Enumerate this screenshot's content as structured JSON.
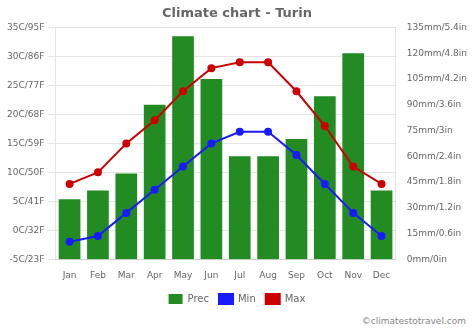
{
  "chart_data": {
    "type": "bar",
    "title": "Climate chart - Turin",
    "categories": [
      "Jan",
      "Feb",
      "Mar",
      "Apr",
      "May",
      "Jun",
      "Jul",
      "Aug",
      "Sep",
      "Oct",
      "Nov",
      "Dec"
    ],
    "series": [
      {
        "name": "Prec",
        "type": "bar",
        "axis": "y2",
        "color": "#228B22",
        "values": [
          35,
          40,
          50,
          90,
          130,
          105,
          60,
          60,
          70,
          95,
          120,
          40
        ]
      },
      {
        "name": "Min",
        "type": "line",
        "marker": "circle",
        "color": "#1a1aff",
        "values": [
          -2,
          -1,
          3,
          7,
          11,
          15,
          17,
          17,
          13,
          8,
          3,
          -1
        ]
      },
      {
        "name": "Max",
        "type": "line",
        "marker": "circle",
        "color": "#cc0000",
        "values": [
          8,
          10,
          15,
          19,
          24,
          28,
          29,
          29,
          24,
          18,
          11,
          8
        ]
      }
    ],
    "ylim": [
      -5,
      35
    ],
    "yticks": [
      {
        "value": -5,
        "label": "-5C/23F"
      },
      {
        "value": 0,
        "label": "0C/32F"
      },
      {
        "value": 5,
        "label": "5C/41F"
      },
      {
        "value": 10,
        "label": "10C/50F"
      },
      {
        "value": 15,
        "label": "15C/59F"
      },
      {
        "value": 20,
        "label": "20C/68F"
      },
      {
        "value": 25,
        "label": "25C/77F"
      },
      {
        "value": 30,
        "label": "30C/86F"
      },
      {
        "value": 35,
        "label": "35C/95F"
      }
    ],
    "y2lim": [
      0,
      135
    ],
    "y2ticks": [
      {
        "value": 0,
        "label": "0mm/0in"
      },
      {
        "value": 15,
        "label": "15mm/0.6in"
      },
      {
        "value": 30,
        "label": "30mm/1.2in"
      },
      {
        "value": 45,
        "label": "45mm/1.8in"
      },
      {
        "value": 60,
        "label": "60mm/2.4in"
      },
      {
        "value": 75,
        "label": "75mm/3in"
      },
      {
        "value": 90,
        "label": "90mm/3.6in"
      },
      {
        "value": 105,
        "label": "105mm/4.2in"
      },
      {
        "value": 120,
        "label": "120mm/4.8in"
      },
      {
        "value": 135,
        "label": "135mm/5.4in"
      }
    ],
    "grid": true,
    "legend": "bottom",
    "annotations": [
      "©climatestotravel.com"
    ]
  }
}
